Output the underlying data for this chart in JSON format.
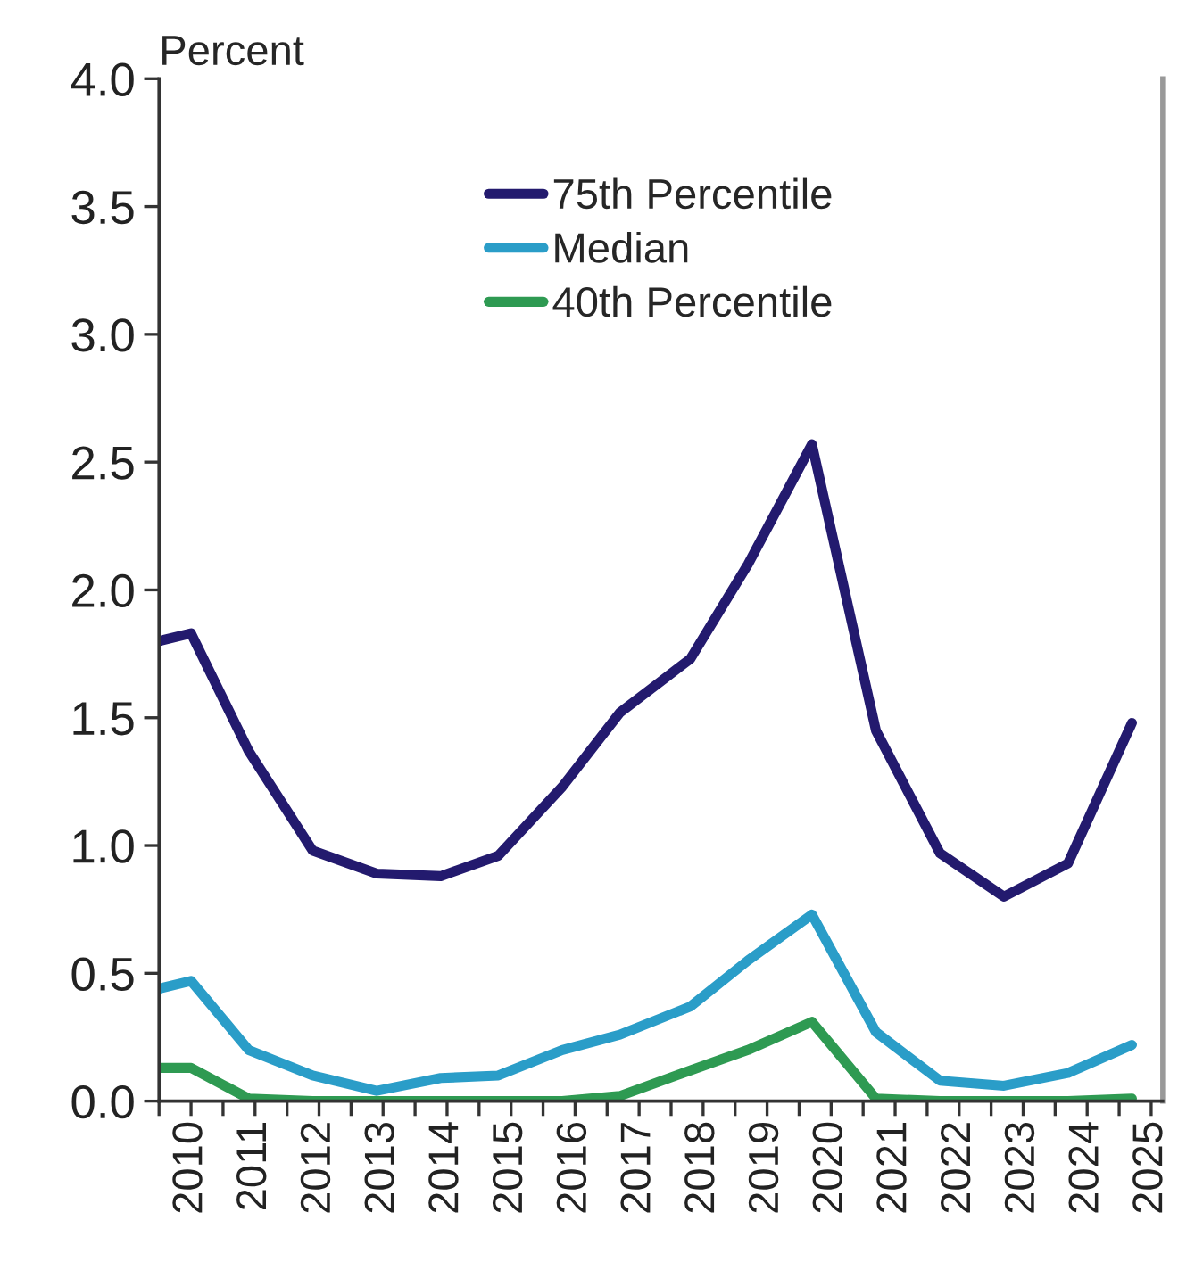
{
  "chart_data": {
    "type": "line",
    "ylabel": "Percent",
    "x": [
      2010.0,
      2010.5,
      2011.4,
      2012.4,
      2013.4,
      2014.4,
      2015.3,
      2016.3,
      2017.2,
      2018.3,
      2019.2,
      2020.2,
      2021.2,
      2022.2,
      2023.2,
      2024.2,
      2025.2
    ],
    "series": [
      {
        "name": "75th Percentile",
        "color": "#231a6e",
        "values": [
          1.8,
          1.83,
          1.37,
          0.98,
          0.89,
          0.88,
          0.96,
          1.23,
          1.52,
          1.73,
          2.1,
          2.57,
          1.45,
          0.97,
          0.8,
          0.93,
          1.48
        ]
      },
      {
        "name": "Median",
        "color": "#2a9dc8",
        "values": [
          0.44,
          0.47,
          0.2,
          0.1,
          0.04,
          0.09,
          0.1,
          0.2,
          0.26,
          0.37,
          0.55,
          0.73,
          0.27,
          0.08,
          0.06,
          0.11,
          0.22
        ]
      },
      {
        "name": "40th Percentile",
        "color": "#2e9a52",
        "values": [
          0.13,
          0.13,
          0.01,
          0.0,
          0.0,
          0.0,
          0.0,
          0.0,
          0.02,
          0.12,
          0.2,
          0.31,
          0.01,
          0.0,
          0.0,
          0.0,
          0.01
        ]
      }
    ],
    "xlim": [
      2010,
      2025.68
    ],
    "xticks": [
      {
        "value": 2010,
        "label": null
      },
      {
        "value": 2010.5,
        "label": "2010"
      },
      {
        "value": 2011,
        "label": null
      },
      {
        "value": 2011.5,
        "label": "2011"
      },
      {
        "value": 2012,
        "label": null
      },
      {
        "value": 2012.5,
        "label": "2012"
      },
      {
        "value": 2013,
        "label": null
      },
      {
        "value": 2013.5,
        "label": "2013"
      },
      {
        "value": 2014,
        "label": null
      },
      {
        "value": 2014.5,
        "label": "2014"
      },
      {
        "value": 2015,
        "label": null
      },
      {
        "value": 2015.5,
        "label": "2015"
      },
      {
        "value": 2016,
        "label": null
      },
      {
        "value": 2016.5,
        "label": "2016"
      },
      {
        "value": 2017,
        "label": null
      },
      {
        "value": 2017.5,
        "label": "2017"
      },
      {
        "value": 2018,
        "label": null
      },
      {
        "value": 2018.5,
        "label": "2018"
      },
      {
        "value": 2019,
        "label": null
      },
      {
        "value": 2019.5,
        "label": "2019"
      },
      {
        "value": 2020,
        "label": null
      },
      {
        "value": 2020.5,
        "label": "2020"
      },
      {
        "value": 2021,
        "label": null
      },
      {
        "value": 2021.5,
        "label": "2021"
      },
      {
        "value": 2022,
        "label": null
      },
      {
        "value": 2022.5,
        "label": "2022"
      },
      {
        "value": 2023,
        "label": null
      },
      {
        "value": 2023.5,
        "label": "2023"
      },
      {
        "value": 2024,
        "label": null
      },
      {
        "value": 2024.5,
        "label": "2024"
      },
      {
        "value": 2025,
        "label": null
      },
      {
        "value": 2025.5,
        "label": "2025"
      }
    ],
    "ylim": [
      0,
      4
    ],
    "yticks": [
      {
        "value": 0,
        "label": "0.0"
      },
      {
        "value": 0.5,
        "label": "0.5"
      },
      {
        "value": 1,
        "label": "1.0"
      },
      {
        "value": 1.5,
        "label": "1.5"
      },
      {
        "value": 2,
        "label": "2.0"
      },
      {
        "value": 2.5,
        "label": "2.5"
      },
      {
        "value": 3,
        "label": "3.0"
      },
      {
        "value": 3.5,
        "label": "3.5"
      },
      {
        "value": 4,
        "label": "4.0"
      }
    ],
    "grid": false,
    "legend": "top",
    "marker": "none",
    "line_style": "solid"
  }
}
